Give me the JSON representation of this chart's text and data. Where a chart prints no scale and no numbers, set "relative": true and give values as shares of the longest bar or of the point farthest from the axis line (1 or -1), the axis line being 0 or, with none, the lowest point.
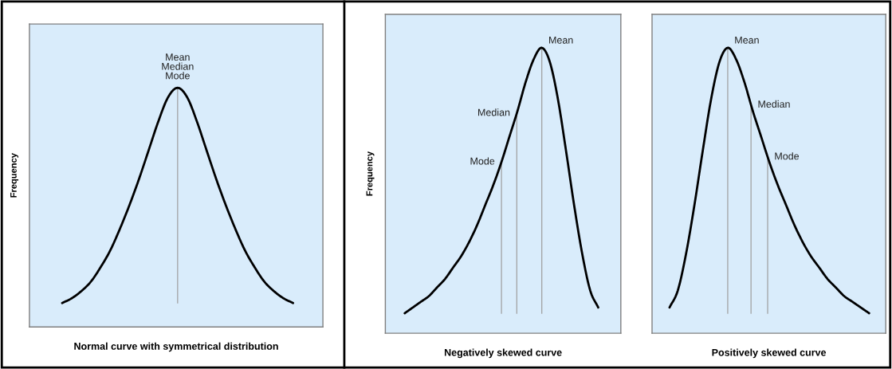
{
  "chart_data": [
    {
      "type": "line",
      "relative": true,
      "xlabel": "Normal curve with symmetrical distribution",
      "ylabel": "Frequency",
      "tick_labels": false,
      "categories": [
        null,
        null,
        null,
        null,
        null,
        null,
        null,
        null,
        null,
        null,
        null,
        null,
        null,
        null,
        null,
        null,
        null,
        null,
        null,
        null,
        null,
        null,
        null,
        null,
        null
      ],
      "series": [
        {
          "color": "#000000",
          "values": [
            0.1,
            0.12,
            0.15,
            0.19,
            0.25,
            0.32,
            0.41,
            0.51,
            0.62,
            0.74,
            0.86,
            0.96,
            1.0,
            0.96,
            0.86,
            0.74,
            0.62,
            0.51,
            0.41,
            0.32,
            0.25,
            0.19,
            0.15,
            0.12,
            0.1
          ]
        }
      ],
      "annotations": [
        "Mean\nMedian\nMode"
      ]
    },
    {
      "type": "line",
      "relative": true,
      "xlabel": "Negatively skewed curve",
      "ylabel": "Frequency",
      "tick_labels": false,
      "categories": [
        null,
        null,
        null,
        null,
        null,
        null,
        null,
        null,
        null,
        null,
        null,
        null,
        null,
        null,
        null,
        null,
        null,
        null,
        null,
        null,
        null,
        null,
        null,
        null,
        null
      ],
      "series": [
        {
          "color": "#000000",
          "values": [
            0.07,
            0.09,
            0.11,
            0.13,
            0.16,
            0.19,
            0.23,
            0.27,
            0.32,
            0.38,
            0.45,
            0.52,
            0.6,
            0.69,
            0.78,
            0.88,
            0.96,
            1.0,
            0.95,
            0.82,
            0.64,
            0.45,
            0.28,
            0.15,
            0.09
          ]
        }
      ],
      "annotations": [
        "Mode",
        "Median",
        "Mean"
      ]
    },
    {
      "type": "line",
      "relative": true,
      "xlabel": "Positively skewed curve",
      "tick_labels": false,
      "categories": [
        null,
        null,
        null,
        null,
        null,
        null,
        null,
        null,
        null,
        null,
        null,
        null,
        null,
        null,
        null,
        null,
        null,
        null,
        null,
        null,
        null,
        null,
        null,
        null,
        null
      ],
      "series": [
        {
          "color": "#000000",
          "values": [
            0.09,
            0.15,
            0.28,
            0.45,
            0.64,
            0.82,
            0.95,
            1.0,
            0.96,
            0.88,
            0.78,
            0.69,
            0.6,
            0.52,
            0.45,
            0.38,
            0.32,
            0.27,
            0.23,
            0.19,
            0.16,
            0.13,
            0.11,
            0.09,
            0.07
          ]
        }
      ],
      "annotations": [
        "Mean",
        "Median",
        "Mode"
      ]
    }
  ]
}
